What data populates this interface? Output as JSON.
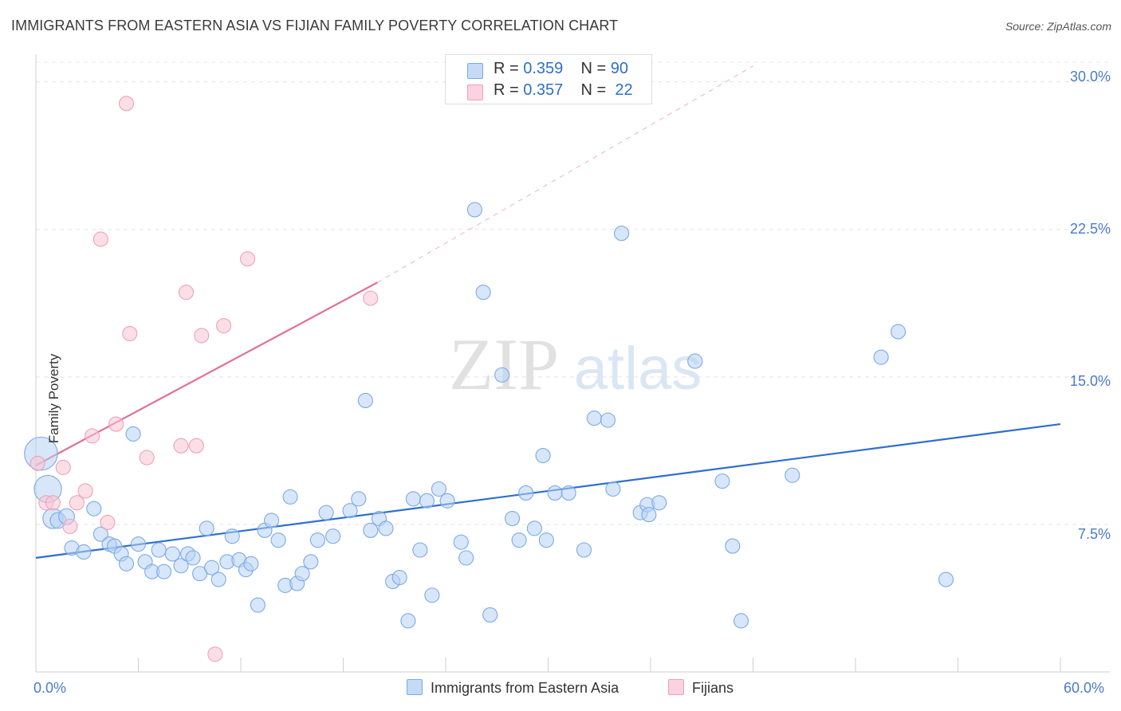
{
  "title": "IMMIGRANTS FROM EASTERN ASIA VS FIJIAN FAMILY POVERTY CORRELATION CHART",
  "source": "Source: ZipAtlas.com",
  "watermark": {
    "zip": "ZIP",
    "atlas": "atlas"
  },
  "legend_top": [
    {
      "r_label": "R =",
      "r_value": "0.359",
      "n_label": "N =",
      "n_value": "90"
    },
    {
      "r_label": "R =",
      "r_value": "0.357",
      "n_label": "N =",
      "n_value": "22"
    }
  ],
  "chart_data": {
    "type": "scatter",
    "title": "IMMIGRANTS FROM EASTERN ASIA VS FIJIAN FAMILY POVERTY CORRELATION CHART",
    "xlabel": "",
    "ylabel": "Family Poverty",
    "xlim": [
      0,
      60
    ],
    "ylim": [
      0,
      31
    ],
    "x_tick_labels": [
      "0.0%",
      "60.0%"
    ],
    "y_ticks": [
      7.5,
      15.0,
      22.5,
      30.0
    ],
    "y_tick_labels": [
      "7.5%",
      "15.0%",
      "22.5%",
      "30.0%"
    ],
    "colors": {
      "blue": "#7aaae8",
      "pink": "#f0a0b8",
      "blue_line": "#2e6fcc",
      "pink_line": "#e0709a"
    },
    "series": [
      {
        "name": "Immigrants from Eastern Asia",
        "color": "blue",
        "trend": {
          "x0": 0,
          "y0": 5.8,
          "x1": 60,
          "y1": 12.6
        },
        "points": [
          [
            0.3,
            11.1,
            2.3
          ],
          [
            0.7,
            9.3,
            1.9
          ],
          [
            1.0,
            7.8,
            1.4
          ],
          [
            1.3,
            7.7,
            1.1
          ],
          [
            1.8,
            7.9,
            1.1
          ],
          [
            2.1,
            6.3,
            1.0
          ],
          [
            3.4,
            8.3,
            1.0
          ],
          [
            2.8,
            6.1,
            1.0
          ],
          [
            3.8,
            7.0,
            1.0
          ],
          [
            4.3,
            6.5,
            1.0
          ],
          [
            4.6,
            6.4,
            1.0
          ],
          [
            5.0,
            6.0,
            1.0
          ],
          [
            5.3,
            5.5,
            1.0
          ],
          [
            5.7,
            12.1,
            1.0
          ],
          [
            6.0,
            6.5,
            1.0
          ],
          [
            6.4,
            5.6,
            1.0
          ],
          [
            6.8,
            5.1,
            1.0
          ],
          [
            7.2,
            6.2,
            1.0
          ],
          [
            7.5,
            5.1,
            1.0
          ],
          [
            8.0,
            6.0,
            1.0
          ],
          [
            8.5,
            5.4,
            1.0
          ],
          [
            8.9,
            6.0,
            1.0
          ],
          [
            9.2,
            5.8,
            1.0
          ],
          [
            9.6,
            5.0,
            1.0
          ],
          [
            10.0,
            7.3,
            1.0
          ],
          [
            10.3,
            5.3,
            1.0
          ],
          [
            10.7,
            4.7,
            1.0
          ],
          [
            11.2,
            5.6,
            1.0
          ],
          [
            11.5,
            6.9,
            1.0
          ],
          [
            11.9,
            5.7,
            1.0
          ],
          [
            12.3,
            5.2,
            1.0
          ],
          [
            12.6,
            5.5,
            1.0
          ],
          [
            13.0,
            3.4,
            1.0
          ],
          [
            13.4,
            7.2,
            1.0
          ],
          [
            13.8,
            7.7,
            1.0
          ],
          [
            14.2,
            6.7,
            1.0
          ],
          [
            14.6,
            4.4,
            1.0
          ],
          [
            14.9,
            8.9,
            1.0
          ],
          [
            15.3,
            4.5,
            1.0
          ],
          [
            15.6,
            5.0,
            1.0
          ],
          [
            16.1,
            5.6,
            1.0
          ],
          [
            16.5,
            6.7,
            1.0
          ],
          [
            17.0,
            8.1,
            1.0
          ],
          [
            17.4,
            6.9,
            1.0
          ],
          [
            18.4,
            8.2,
            1.0
          ],
          [
            18.9,
            8.8,
            1.0
          ],
          [
            19.3,
            13.8,
            1.0
          ],
          [
            19.6,
            7.2,
            1.0
          ],
          [
            20.1,
            7.8,
            1.0
          ],
          [
            20.5,
            7.3,
            1.0
          ],
          [
            20.9,
            4.6,
            1.0
          ],
          [
            21.3,
            4.8,
            1.0
          ],
          [
            21.8,
            2.6,
            1.0
          ],
          [
            22.1,
            8.8,
            1.0
          ],
          [
            22.5,
            6.2,
            1.0
          ],
          [
            22.9,
            8.7,
            1.0
          ],
          [
            23.2,
            3.9,
            1.0
          ],
          [
            23.6,
            9.3,
            1.0
          ],
          [
            24.1,
            8.7,
            1.0
          ],
          [
            24.9,
            6.6,
            1.0
          ],
          [
            25.2,
            5.8,
            1.0
          ],
          [
            25.7,
            23.5,
            1.0
          ],
          [
            26.2,
            19.3,
            1.0
          ],
          [
            26.6,
            2.9,
            1.0
          ],
          [
            27.3,
            15.1,
            1.0
          ],
          [
            27.9,
            7.8,
            1.0
          ],
          [
            28.3,
            6.7,
            1.0
          ],
          [
            28.7,
            9.1,
            1.0
          ],
          [
            29.2,
            7.3,
            1.0
          ],
          [
            29.7,
            11.0,
            1.0
          ],
          [
            29.9,
            6.7,
            1.0
          ],
          [
            30.4,
            9.1,
            1.0
          ],
          [
            31.2,
            9.1,
            1.0
          ],
          [
            32.1,
            6.2,
            1.0
          ],
          [
            32.7,
            12.9,
            1.0
          ],
          [
            33.5,
            12.8,
            1.0
          ],
          [
            33.8,
            9.3,
            1.0
          ],
          [
            34.3,
            22.3,
            1.0
          ],
          [
            35.4,
            8.1,
            1.0
          ],
          [
            35.8,
            8.5,
            1.0
          ],
          [
            36.5,
            8.6,
            1.0
          ],
          [
            38.6,
            15.8,
            1.0
          ],
          [
            40.2,
            9.7,
            1.0
          ],
          [
            40.8,
            6.4,
            1.0
          ],
          [
            41.3,
            2.6,
            1.0
          ],
          [
            44.3,
            10.0,
            1.0
          ],
          [
            49.5,
            16.0,
            1.0
          ],
          [
            50.5,
            17.3,
            1.0
          ],
          [
            53.3,
            4.7,
            1.0
          ],
          [
            35.9,
            8.0,
            1.0
          ]
        ]
      },
      {
        "name": "Fijians",
        "color": "pink",
        "trend": {
          "x0": 0,
          "y0": 10.5,
          "x1": 20,
          "y1": 19.8,
          "dashed_to": {
            "x": 42,
            "y": 30.8
          }
        },
        "points": [
          [
            0.1,
            10.6,
            1.0
          ],
          [
            0.6,
            8.6,
            1.0
          ],
          [
            1.0,
            8.6,
            1.0
          ],
          [
            1.6,
            10.4,
            1.0
          ],
          [
            2.0,
            7.4,
            1.0
          ],
          [
            2.4,
            8.6,
            1.0
          ],
          [
            2.9,
            9.2,
            1.0
          ],
          [
            3.3,
            12.0,
            1.0
          ],
          [
            3.8,
            22.0,
            1.0
          ],
          [
            4.2,
            7.6,
            1.0
          ],
          [
            4.7,
            12.6,
            1.0
          ],
          [
            5.3,
            28.9,
            1.0
          ],
          [
            5.5,
            17.2,
            1.0
          ],
          [
            6.5,
            10.9,
            1.0
          ],
          [
            8.5,
            11.5,
            1.0
          ],
          [
            8.8,
            19.3,
            1.0
          ],
          [
            9.4,
            11.5,
            1.0
          ],
          [
            9.7,
            17.1,
            1.0
          ],
          [
            10.5,
            0.9,
            1.0
          ],
          [
            11.0,
            17.6,
            1.0
          ],
          [
            12.4,
            21.0,
            1.0
          ],
          [
            19.6,
            19.0,
            1.0
          ]
        ]
      }
    ]
  },
  "legend_bottom": [
    "Immigrants from Eastern Asia",
    "Fijians"
  ]
}
